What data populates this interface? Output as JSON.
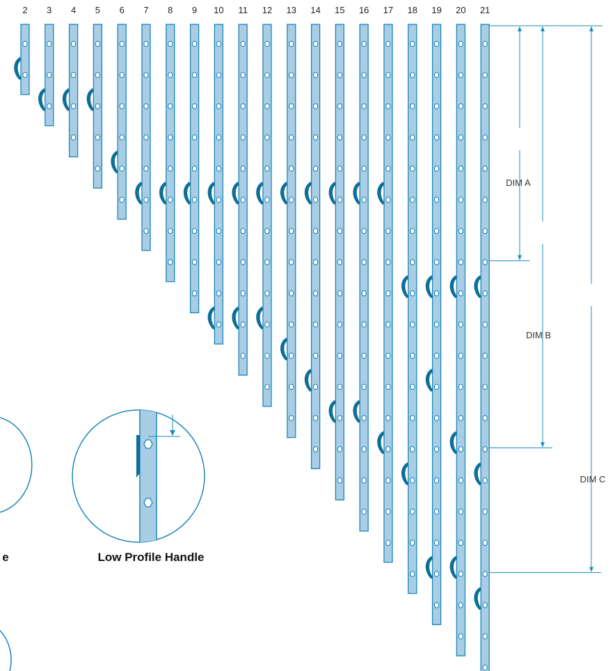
{
  "colors": {
    "rail_fill": "#a9cde4",
    "rail_stroke": "#1b86b9",
    "handle": "#0e6f96",
    "dim_line": "#1a8bbd",
    "hole_fill": "#ffffff"
  },
  "rail_columns": [
    {
      "label": "2",
      "holes": 2,
      "handles": [
        1
      ]
    },
    {
      "label": "3",
      "holes": 3,
      "handles": [
        2
      ]
    },
    {
      "label": "4",
      "holes": 4,
      "handles": [
        2
      ]
    },
    {
      "label": "5",
      "holes": 5,
      "handles": [
        2
      ]
    },
    {
      "label": "6",
      "holes": 6,
      "handles": [
        4
      ]
    },
    {
      "label": "7",
      "holes": 7,
      "handles": [
        5
      ]
    },
    {
      "label": "8",
      "holes": 8,
      "handles": [
        5
      ]
    },
    {
      "label": "9",
      "holes": 9,
      "handles": [
        5
      ]
    },
    {
      "label": "10",
      "holes": 10,
      "handles": [
        5,
        9
      ]
    },
    {
      "label": "11",
      "holes": 11,
      "handles": [
        5,
        9
      ]
    },
    {
      "label": "12",
      "holes": 12,
      "handles": [
        5,
        9
      ]
    },
    {
      "label": "13",
      "holes": 13,
      "handles": [
        5,
        10
      ]
    },
    {
      "label": "14",
      "holes": 14,
      "handles": [
        5,
        11
      ]
    },
    {
      "label": "15",
      "holes": 15,
      "handles": [
        5,
        12
      ]
    },
    {
      "label": "16",
      "holes": 16,
      "handles": [
        5,
        12
      ]
    },
    {
      "label": "17",
      "holes": 17,
      "handles": [
        5,
        13
      ]
    },
    {
      "label": "18",
      "holes": 18,
      "handles": [
        8,
        14
      ]
    },
    {
      "label": "19",
      "holes": 19,
      "handles": [
        8,
        11,
        17
      ]
    },
    {
      "label": "20",
      "holes": 20,
      "handles": [
        8,
        13,
        17
      ]
    },
    {
      "label": "21",
      "holes": 21,
      "handles": [
        8,
        14,
        18
      ]
    }
  ],
  "dimensions": [
    {
      "label": "DIM A"
    },
    {
      "label": "DIM B"
    },
    {
      "label": "DIM C"
    }
  ],
  "detail_caption": "Low Profile Handle",
  "left_caption_fragment": "e"
}
